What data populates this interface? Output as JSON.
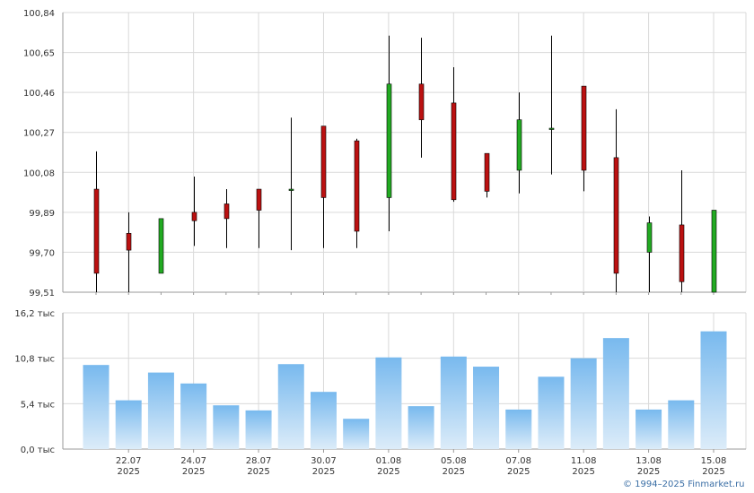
{
  "copyright": "© 1994–2025 Finmarket.ru",
  "chart_data": [
    {
      "type": "candlestick",
      "y_ticks": [
        {
          "value": 99.51,
          "label": "99,51"
        },
        {
          "value": 99.7,
          "label": "99,70"
        },
        {
          "value": 99.89,
          "label": "99,89"
        },
        {
          "value": 100.08,
          "label": "100,08"
        },
        {
          "value": 100.27,
          "label": "100,27"
        },
        {
          "value": 100.46,
          "label": "100,46"
        },
        {
          "value": 100.65,
          "label": "100,65"
        },
        {
          "value": 100.84,
          "label": "100,84"
        }
      ],
      "ylim": [
        99.51,
        100.84
      ],
      "grid": true,
      "candles": [
        {
          "date": "2025-07-21",
          "open": 100.0,
          "high": 100.18,
          "low": 99.51,
          "close": 99.6
        },
        {
          "date": "2025-07-22",
          "open": 99.79,
          "high": 99.89,
          "low": 99.51,
          "close": 99.71
        },
        {
          "date": "2025-07-23",
          "open": 99.6,
          "high": 99.86,
          "low": 99.6,
          "close": 99.86
        },
        {
          "date": "2025-07-24",
          "open": 99.89,
          "high": 100.06,
          "low": 99.73,
          "close": 99.85
        },
        {
          "date": "2025-07-25",
          "open": 99.93,
          "high": 100.0,
          "low": 99.72,
          "close": 99.86
        },
        {
          "date": "2025-07-28",
          "open": 100.0,
          "high": 100.0,
          "low": 99.72,
          "close": 99.9
        },
        {
          "date": "2025-07-29",
          "open": 100.0,
          "high": 100.34,
          "low": 99.71,
          "close": 100.0
        },
        {
          "date": "2025-07-30",
          "open": 100.3,
          "high": 100.3,
          "low": 99.72,
          "close": 99.96
        },
        {
          "date": "2025-07-31",
          "open": 100.23,
          "high": 100.24,
          "low": 99.72,
          "close": 99.8
        },
        {
          "date": "2025-08-01",
          "open": 99.96,
          "high": 100.73,
          "low": 99.8,
          "close": 100.5
        },
        {
          "date": "2025-08-04",
          "open": 100.5,
          "high": 100.72,
          "low": 100.15,
          "close": 100.33
        },
        {
          "date": "2025-08-05",
          "open": 100.41,
          "high": 100.58,
          "low": 99.94,
          "close": 99.95
        },
        {
          "date": "2025-08-06",
          "open": 100.17,
          "high": 100.17,
          "low": 99.96,
          "close": 99.99
        },
        {
          "date": "2025-08-07",
          "open": 100.09,
          "high": 100.46,
          "low": 99.98,
          "close": 100.33
        },
        {
          "date": "2025-08-08",
          "open": 100.29,
          "high": 100.73,
          "low": 100.07,
          "close": 100.29
        },
        {
          "date": "2025-08-11",
          "open": 100.49,
          "high": 100.49,
          "low": 99.99,
          "close": 100.09
        },
        {
          "date": "2025-08-12",
          "open": 100.15,
          "high": 100.38,
          "low": 99.51,
          "close": 99.6
        },
        {
          "date": "2025-08-13",
          "open": 99.7,
          "high": 99.87,
          "low": 99.51,
          "close": 99.84
        },
        {
          "date": "2025-08-14",
          "open": 99.83,
          "high": 100.09,
          "low": 99.51,
          "close": 99.56
        },
        {
          "date": "2025-08-15",
          "open": 99.51,
          "high": 99.9,
          "low": 99.51,
          "close": 99.9
        }
      ]
    },
    {
      "type": "bar",
      "y_ticks": [
        {
          "value": 0,
          "label": "0,0 тыс"
        },
        {
          "value": 5.4,
          "label": "5,4 тыс"
        },
        {
          "value": 10.8,
          "label": "10,8 тыс"
        },
        {
          "value": 16.2,
          "label": "16,2 тыс"
        }
      ],
      "ylim": [
        0,
        16.2
      ],
      "grid": true,
      "bar_color_top": "#78b9ee",
      "bar_color_bottom": "#dcecf9",
      "values": [
        10.0,
        5.8,
        9.1,
        7.8,
        5.2,
        4.6,
        10.1,
        6.8,
        3.6,
        10.9,
        5.1,
        11.0,
        9.8,
        4.7,
        8.6,
        10.8,
        13.2,
        4.7,
        5.8,
        14.0
      ],
      "x_labels": [
        {
          "index": 1,
          "day": "22.07",
          "year": "2025"
        },
        {
          "index": 3,
          "day": "24.07",
          "year": "2025"
        },
        {
          "index": 5,
          "day": "28.07",
          "year": "2025"
        },
        {
          "index": 7,
          "day": "30.07",
          "year": "2025"
        },
        {
          "index": 9,
          "day": "01.08",
          "year": "2025"
        },
        {
          "index": 11,
          "day": "05.08",
          "year": "2025"
        },
        {
          "index": 13,
          "day": "07.08",
          "year": "2025"
        },
        {
          "index": 15,
          "day": "11.08",
          "year": "2025"
        },
        {
          "index": 17,
          "day": "13.08",
          "year": "2025"
        },
        {
          "index": 19,
          "day": "15.08",
          "year": "2025"
        }
      ]
    }
  ],
  "colors": {
    "up": "#22aa22",
    "down": "#bb1111",
    "wick": "#000000",
    "grid": "#d9d9d9",
    "axis": "#9a9a9a"
  }
}
